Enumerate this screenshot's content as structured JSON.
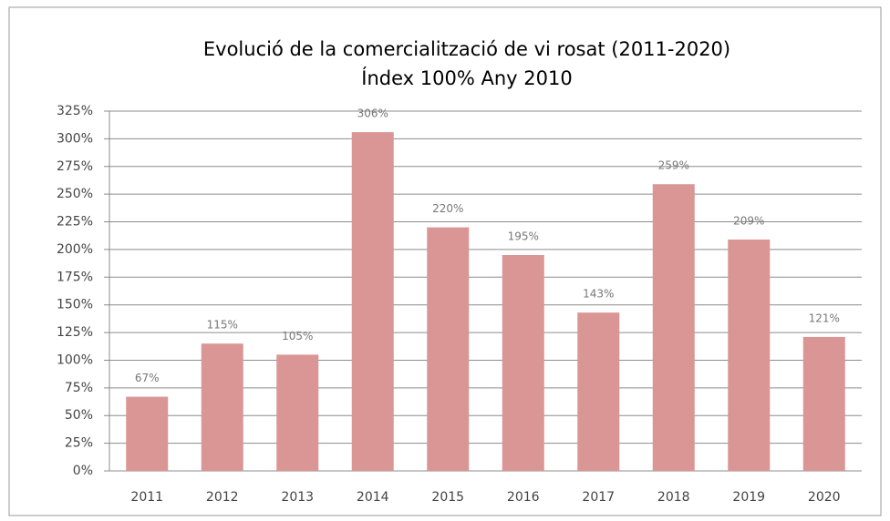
{
  "chart_data": {
    "type": "bar",
    "title": "Evolució de la comercialització de  vi rosat (2011-2020)",
    "subtitle": "Índex 100% Any 2010",
    "categories": [
      "2011",
      "2012",
      "2013",
      "2014",
      "2015",
      "2016",
      "2017",
      "2018",
      "2019",
      "2020"
    ],
    "values": [
      67,
      115,
      105,
      306,
      220,
      195,
      143,
      259,
      209,
      121
    ],
    "value_labels": [
      "67%",
      "115%",
      "105%",
      "306%",
      "220%",
      "195%",
      "143%",
      "259%",
      "209%",
      "121%"
    ],
    "color": "#d99694",
    "ylim": [
      0,
      325
    ],
    "yticks": [
      {
        "value": 0,
        "label": "0%"
      },
      {
        "value": 25,
        "label": "25%"
      },
      {
        "value": 50,
        "label": "50%"
      },
      {
        "value": 75,
        "label": "75%"
      },
      {
        "value": 100,
        "label": "100%"
      },
      {
        "value": 125,
        "label": "125%"
      },
      {
        "value": 150,
        "label": "150%"
      },
      {
        "value": 175,
        "label": "175%"
      },
      {
        "value": 200,
        "label": "200%"
      },
      {
        "value": 225,
        "label": "225%"
      },
      {
        "value": 250,
        "label": "250%"
      },
      {
        "value": 275,
        "label": "275%"
      },
      {
        "value": 300,
        "label": "300%"
      },
      {
        "value": 325,
        "label": "325%"
      }
    ],
    "grid": true
  }
}
